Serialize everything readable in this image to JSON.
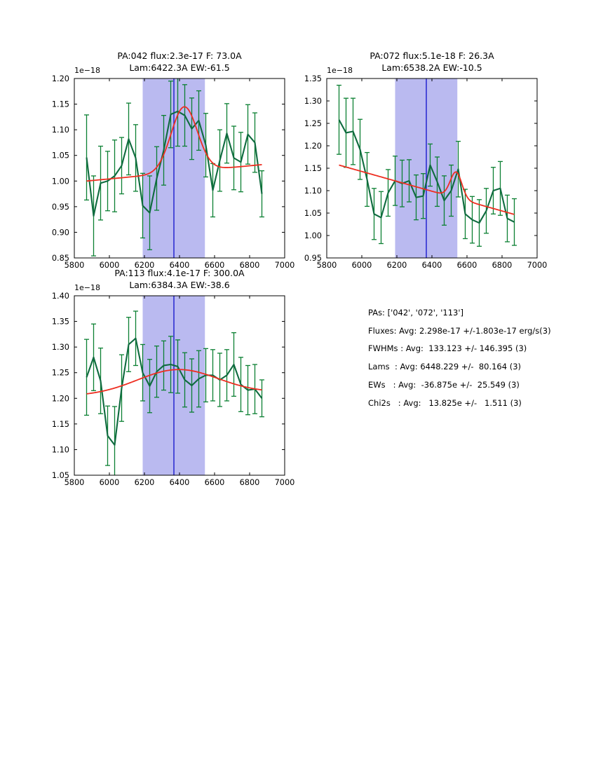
{
  "figure": {
    "background": "#ffffff"
  },
  "colors": {
    "data_line": "#0f6b3f",
    "error_bar": "#0c8033",
    "fit_line": "#ee2e21",
    "band": "#babaf0",
    "vline": "#1b1bce",
    "axis": "#000000",
    "text": "#000000"
  },
  "side_panel": {
    "lines": [
      "PAs: ['042', '072', '113']",
      "Fluxes: Avg: 2.298e-17 +/-1.803e-17 erg/s(3)",
      "FWHMs : Avg:  133.123 +/- 146.395 (3)",
      "Lams  : Avg: 6448.229 +/-  80.164 (3)",
      "EWs   : Avg:  -36.875e +/-  25.549 (3)",
      "Chi2s   : Avg:   13.825e +/-   1.511 (3)"
    ]
  },
  "chart_data": [
    {
      "id": "pa042",
      "type": "line",
      "title_line1": "PA:042 flux:2.3e-17 F: 73.0A",
      "title_line2": "Lam:6422.3A EW:-61.5",
      "offset_label": "1e−18",
      "xlim": [
        5800,
        7000
      ],
      "ylim": [
        0.85,
        1.2
      ],
      "x_ticks": [
        5800,
        6000,
        6200,
        6400,
        6600,
        6800,
        7000
      ],
      "y_ticks": [
        0.85,
        0.9,
        0.95,
        1.0,
        1.05,
        1.1,
        1.15,
        1.2
      ],
      "band": [
        6190,
        6545
      ],
      "vline": 6368,
      "x": [
        5870,
        5910,
        5950,
        5990,
        6030,
        6070,
        6110,
        6150,
        6190,
        6230,
        6270,
        6310,
        6350,
        6390,
        6430,
        6470,
        6510,
        6550,
        6590,
        6630,
        6670,
        6710,
        6750,
        6790,
        6830,
        6870
      ],
      "y": [
        1.046,
        0.932,
        0.996,
        1.0,
        1.01,
        1.03,
        1.082,
        1.045,
        0.952,
        0.938,
        1.005,
        1.06,
        1.13,
        1.136,
        1.128,
        1.102,
        1.118,
        1.07,
        0.982,
        1.04,
        1.093,
        1.045,
        1.037,
        1.091,
        1.075,
        0.975
      ],
      "yerr": [
        0.083,
        0.078,
        0.072,
        0.058,
        0.07,
        0.055,
        0.07,
        0.065,
        0.063,
        0.072,
        0.062,
        0.068,
        0.065,
        0.068,
        0.06,
        0.06,
        0.058,
        0.062,
        0.052,
        0.06,
        0.058,
        0.062,
        0.058,
        0.058,
        0.058,
        0.045
      ],
      "fit": {
        "base_start": 1.0,
        "base_end": 1.032,
        "center": 6427,
        "amp": 0.127,
        "sigma": 75
      }
    },
    {
      "id": "pa072",
      "type": "line",
      "title_line1": "PA:072 flux:5.1e-18 F: 26.3A",
      "title_line2": "Lam:6538.2A EW:-10.5",
      "offset_label": "1e−18",
      "xlim": [
        5800,
        7000
      ],
      "ylim": [
        0.95,
        1.35
      ],
      "x_ticks": [
        5800,
        6000,
        6200,
        6400,
        6600,
        6800,
        7000
      ],
      "y_ticks": [
        0.95,
        1.0,
        1.05,
        1.1,
        1.15,
        1.2,
        1.25,
        1.3,
        1.35
      ],
      "band": [
        6190,
        6545
      ],
      "vline": 6368,
      "x": [
        5870,
        5910,
        5950,
        5990,
        6030,
        6070,
        6110,
        6150,
        6190,
        6230,
        6270,
        6310,
        6350,
        6390,
        6430,
        6470,
        6510,
        6550,
        6590,
        6630,
        6670,
        6710,
        6750,
        6790,
        6830,
        6870
      ],
      "y": [
        1.258,
        1.229,
        1.232,
        1.192,
        1.125,
        1.048,
        1.04,
        1.095,
        1.122,
        1.116,
        1.122,
        1.085,
        1.088,
        1.157,
        1.12,
        1.078,
        1.1,
        1.148,
        1.048,
        1.035,
        1.028,
        1.055,
        1.1,
        1.105,
        1.038,
        1.03
      ],
      "yerr": [
        0.077,
        0.077,
        0.074,
        0.067,
        0.06,
        0.057,
        0.058,
        0.052,
        0.055,
        0.052,
        0.047,
        0.05,
        0.05,
        0.047,
        0.055,
        0.055,
        0.057,
        0.062,
        0.055,
        0.052,
        0.052,
        0.05,
        0.052,
        0.06,
        0.052,
        0.052
      ],
      "fit": {
        "base_start": 1.157,
        "base_end": 1.047,
        "center": 6538,
        "amp": 0.058,
        "sigma": 33
      }
    },
    {
      "id": "pa113",
      "type": "line",
      "title_line1": "PA:113 flux:4.1e-17 F: 300.0A",
      "title_line2": "Lam:6384.3A EW:-38.6",
      "offset_label": "1e−18",
      "xlim": [
        5800,
        7000
      ],
      "ylim": [
        1.05,
        1.4
      ],
      "x_ticks": [
        5800,
        6000,
        6200,
        6400,
        6600,
        6800,
        7000
      ],
      "y_ticks": [
        1.05,
        1.1,
        1.15,
        1.2,
        1.25,
        1.3,
        1.35,
        1.4
      ],
      "band": [
        6190,
        6545
      ],
      "vline": 6368,
      "x": [
        5870,
        5910,
        5950,
        5990,
        6030,
        6070,
        6110,
        6150,
        6190,
        6230,
        6270,
        6310,
        6350,
        6390,
        6430,
        6470,
        6510,
        6550,
        6590,
        6630,
        6670,
        6710,
        6750,
        6790,
        6830,
        6870
      ],
      "y": [
        1.241,
        1.28,
        1.234,
        1.127,
        1.109,
        1.22,
        1.305,
        1.317,
        1.25,
        1.224,
        1.252,
        1.264,
        1.266,
        1.262,
        1.236,
        1.225,
        1.238,
        1.245,
        1.245,
        1.236,
        1.245,
        1.266,
        1.227,
        1.216,
        1.218,
        1.2
      ],
      "yerr": [
        0.074,
        0.065,
        0.064,
        0.058,
        0.075,
        0.065,
        0.053,
        0.053,
        0.055,
        0.052,
        0.05,
        0.048,
        0.055,
        0.052,
        0.053,
        0.052,
        0.055,
        0.052,
        0.05,
        0.052,
        0.05,
        0.062,
        0.053,
        0.048,
        0.048,
        0.036
      ],
      "fit": {
        "base_start": 1.205,
        "base_end": 1.211,
        "center": 6390,
        "amp": 0.048,
        "sigma": 230
      }
    }
  ]
}
